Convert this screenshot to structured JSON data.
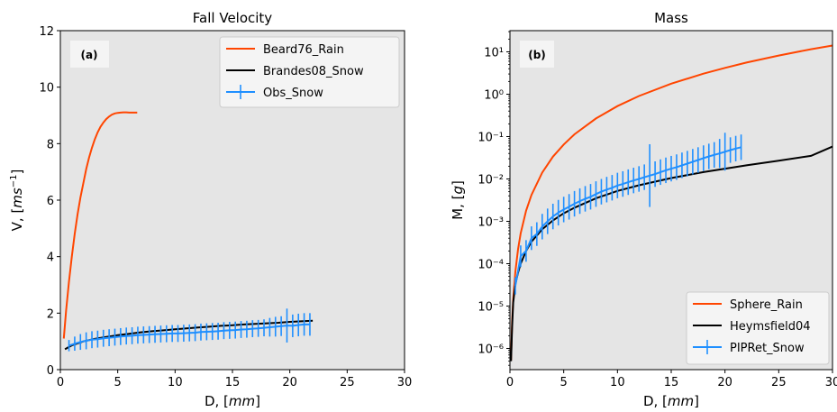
{
  "chart_data": [
    {
      "type": "line",
      "panel": "(a)",
      "title": "Fall Velocity",
      "xlabel": "D, [mm]",
      "ylabel": "V, [ms⁻¹]",
      "xlim": [
        0,
        30
      ],
      "ylim": [
        0,
        12
      ],
      "xticks": [
        0,
        5,
        10,
        15,
        20,
        25,
        30
      ],
      "yticks": [
        0,
        2,
        4,
        6,
        8,
        10,
        12
      ],
      "grid": false,
      "background": "#e5e5e5",
      "legend_position": "top-right",
      "series": [
        {
          "name": "Beard76_Rain",
          "color": "#ff4500",
          "style": "line",
          "x": [
            0.3,
            0.5,
            0.75,
            1.0,
            1.25,
            1.5,
            1.75,
            2.0,
            2.25,
            2.5,
            2.75,
            3.0,
            3.25,
            3.5,
            3.75,
            4.0,
            4.25,
            4.5,
            4.75,
            5.0,
            5.25,
            5.5,
            5.75,
            6.0,
            6.25,
            6.5,
            6.7
          ],
          "y": [
            1.1,
            2.1,
            3.1,
            4.0,
            4.8,
            5.5,
            6.1,
            6.6,
            7.1,
            7.5,
            7.85,
            8.15,
            8.4,
            8.6,
            8.75,
            8.87,
            8.96,
            9.03,
            9.07,
            9.09,
            9.1,
            9.11,
            9.11,
            9.1,
            9.1,
            9.1,
            9.1
          ]
        },
        {
          "name": "Brandes08_Snow",
          "color": "#000000",
          "style": "line",
          "x": [
            0.4,
            1,
            2,
            3,
            4,
            5,
            6,
            7,
            8,
            9,
            10,
            11,
            12,
            13,
            14,
            15,
            16,
            17,
            18,
            19,
            20,
            21,
            22
          ],
          "y": [
            0.72,
            0.86,
            1.0,
            1.09,
            1.16,
            1.22,
            1.27,
            1.32,
            1.36,
            1.39,
            1.43,
            1.46,
            1.49,
            1.52,
            1.55,
            1.57,
            1.6,
            1.62,
            1.64,
            1.66,
            1.69,
            1.71,
            1.73
          ]
        },
        {
          "name": "Obs_Snow",
          "color": "#1f8fff",
          "style": "errorbar",
          "x": [
            0.75,
            1.25,
            1.75,
            2.25,
            2.75,
            3.25,
            3.75,
            4.25,
            4.75,
            5.25,
            5.75,
            6.25,
            6.75,
            7.25,
            7.75,
            8.25,
            8.75,
            9.25,
            9.75,
            10.25,
            10.75,
            11.25,
            11.75,
            12.25,
            12.75,
            13.25,
            13.75,
            14.25,
            14.75,
            15.25,
            15.75,
            16.25,
            16.75,
            17.25,
            17.75,
            18.25,
            18.75,
            19.25,
            19.75,
            20.25,
            20.75,
            21.25,
            21.75
          ],
          "y": [
            0.85,
            0.92,
            0.98,
            1.02,
            1.06,
            1.08,
            1.11,
            1.13,
            1.15,
            1.17,
            1.19,
            1.2,
            1.22,
            1.23,
            1.24,
            1.25,
            1.26,
            1.27,
            1.28,
            1.28,
            1.29,
            1.3,
            1.31,
            1.33,
            1.34,
            1.35,
            1.36,
            1.38,
            1.39,
            1.4,
            1.42,
            1.43,
            1.45,
            1.46,
            1.48,
            1.5,
            1.52,
            1.54,
            1.56,
            1.55,
            1.58,
            1.6,
            1.6
          ],
          "yerr": [
            0.2,
            0.25,
            0.28,
            0.3,
            0.3,
            0.3,
            0.3,
            0.3,
            0.3,
            0.3,
            0.3,
            0.3,
            0.3,
            0.3,
            0.3,
            0.3,
            0.3,
            0.3,
            0.3,
            0.3,
            0.3,
            0.3,
            0.3,
            0.3,
            0.3,
            0.3,
            0.3,
            0.3,
            0.3,
            0.3,
            0.3,
            0.3,
            0.3,
            0.3,
            0.3,
            0.33,
            0.35,
            0.35,
            0.6,
            0.4,
            0.4,
            0.4,
            0.4
          ]
        }
      ]
    },
    {
      "type": "line",
      "panel": "(b)",
      "title": "Mass",
      "xlabel": "D, [mm]",
      "ylabel": "M, [g]",
      "yscale": "log",
      "xlim": [
        0,
        30
      ],
      "ylim_exponent": [
        -6.5,
        1.5
      ],
      "xticks": [
        0,
        5,
        10,
        15,
        20,
        25,
        30
      ],
      "ytick_exponents": [
        -6,
        -5,
        -4,
        -3,
        -2,
        -1,
        0,
        1
      ],
      "grid": false,
      "background": "#e5e5e5",
      "legend_position": "lower-right",
      "series": [
        {
          "name": "Sphere_Rain",
          "color": "#ff4500",
          "style": "line",
          "x": [
            0.1,
            0.2,
            0.3,
            0.5,
            0.75,
            1,
            1.5,
            2,
            3,
            4,
            5,
            6,
            8,
            10,
            12,
            15,
            18,
            20,
            22,
            25,
            28,
            30
          ],
          "y": [
            5.2e-07,
            4.2e-06,
            1.41e-05,
            6.5e-05,
            0.00022,
            0.00052,
            0.00177,
            0.0042,
            0.0141,
            0.0335,
            0.065,
            0.113,
            0.268,
            0.524,
            0.905,
            1.77,
            3.05,
            4.19,
            5.58,
            8.18,
            11.5,
            14.1
          ]
        },
        {
          "name": "Heymsfield04",
          "color": "#000000",
          "style": "line",
          "x": [
            0.1,
            0.2,
            0.3,
            0.5,
            0.75,
            1,
            1.5,
            2,
            3,
            4,
            5,
            6,
            8,
            10,
            12,
            15,
            18,
            20,
            22,
            25,
            28,
            30
          ],
          "y": [
            5e-07,
            3.2e-06,
            1.2e-05,
            3.3e-05,
            6.2e-05,
            0.0001,
            0.0002,
            0.00033,
            0.00065,
            0.00105,
            0.00155,
            0.0021,
            0.0035,
            0.0052,
            0.0071,
            0.0105,
            0.0145,
            0.0175,
            0.021,
            0.027,
            0.035,
            0.058
          ]
        },
        {
          "name": "PIPRet_Snow",
          "color": "#1f8fff",
          "style": "errorbar",
          "x": [
            0.5,
            1,
            1.5,
            2,
            2.5,
            3,
            3.5,
            4,
            4.5,
            5,
            5.5,
            6,
            6.5,
            7,
            7.5,
            8,
            8.5,
            9,
            9.5,
            10,
            10.5,
            11,
            11.5,
            12,
            12.5,
            13,
            13.5,
            14,
            14.5,
            15,
            15.5,
            16,
            16.5,
            17,
            17.5,
            18,
            18.5,
            19,
            19.5,
            20,
            20.5,
            21,
            21.5
          ],
          "y": [
            3e-05,
            0.00015,
            0.0002,
            0.0004,
            0.0005,
            0.00075,
            0.001,
            0.0013,
            0.0016,
            0.0019,
            0.0022,
            0.0026,
            0.003,
            0.0034,
            0.0038,
            0.0044,
            0.005,
            0.0056,
            0.0062,
            0.007,
            0.0076,
            0.0084,
            0.0092,
            0.01,
            0.011,
            0.012,
            0.013,
            0.0145,
            0.016,
            0.0175,
            0.019,
            0.021,
            0.023,
            0.0255,
            0.028,
            0.031,
            0.034,
            0.037,
            0.04,
            0.044,
            0.048,
            0.052,
            0.056
          ],
          "err_factor": [
            1.6,
            1.8,
            1.8,
            1.9,
            1.9,
            2.0,
            2.0,
            2.0,
            2.0,
            2.0,
            2.0,
            2.0,
            2.0,
            2.0,
            2.0,
            2.0,
            2.0,
            2.0,
            2.0,
            2.0,
            2.0,
            2.0,
            2.0,
            2.0,
            2.0,
            5.5,
            2.0,
            2.0,
            2.0,
            2.0,
            2.0,
            2.0,
            2.0,
            2.0,
            2.0,
            2.0,
            2.0,
            2.0,
            2.2,
            2.8,
            2.0,
            2.0,
            2.0
          ]
        }
      ]
    }
  ]
}
